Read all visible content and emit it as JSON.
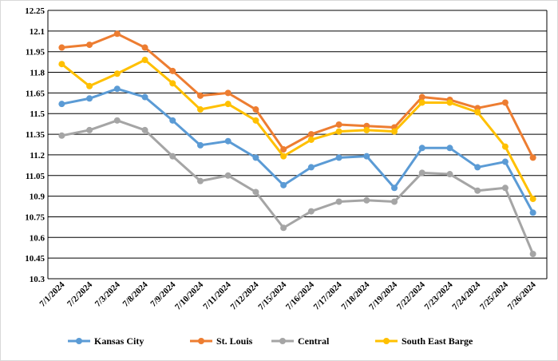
{
  "chart_data": {
    "type": "line",
    "categories": [
      "7/1/2024",
      "7/2/2024",
      "7/3/2024",
      "7/8/2024",
      "7/9/2024",
      "7/10/2024",
      "7/11/2024",
      "7/12/2024",
      "7/15/2024",
      "7/16/2024",
      "7/17/2024",
      "7/18/2024",
      "7/19/2024",
      "7/22/2024",
      "7/23/2024",
      "7/24/2024",
      "7/25/2024",
      "7/26/2024"
    ],
    "series": [
      {
        "name": "Kansas City",
        "color": "#5b9bd5",
        "values": [
          11.57,
          11.61,
          11.68,
          11.62,
          11.45,
          11.27,
          11.3,
          11.18,
          10.98,
          11.11,
          11.18,
          11.19,
          10.96,
          11.25,
          11.25,
          11.11,
          11.15,
          10.78
        ]
      },
      {
        "name": "St. Louis",
        "color": "#ed7d31",
        "values": [
          11.98,
          12.0,
          12.08,
          11.98,
          11.81,
          11.63,
          11.65,
          11.53,
          11.24,
          11.35,
          11.42,
          11.41,
          11.4,
          11.62,
          11.6,
          11.54,
          11.58,
          11.18
        ]
      },
      {
        "name": "Central",
        "color": "#a5a5a5",
        "values": [
          11.34,
          11.38,
          11.45,
          11.38,
          11.19,
          11.01,
          11.05,
          10.93,
          10.67,
          10.79,
          10.86,
          10.87,
          10.86,
          11.07,
          11.06,
          10.94,
          10.96,
          10.48
        ]
      },
      {
        "name": "South East Barge",
        "color": "#ffc000",
        "values": [
          11.86,
          11.7,
          11.79,
          11.89,
          11.72,
          11.53,
          11.57,
          11.45,
          11.19,
          11.31,
          11.37,
          11.38,
          11.37,
          11.58,
          11.58,
          11.51,
          11.26,
          10.88
        ]
      }
    ],
    "ylim": [
      10.3,
      12.25
    ],
    "yticks": [
      10.3,
      10.45,
      10.6,
      10.75,
      10.9,
      11.05,
      11.2,
      11.35,
      11.5,
      11.65,
      11.8,
      11.95,
      12.1,
      12.25
    ],
    "grid": true,
    "legend": "bottom"
  }
}
